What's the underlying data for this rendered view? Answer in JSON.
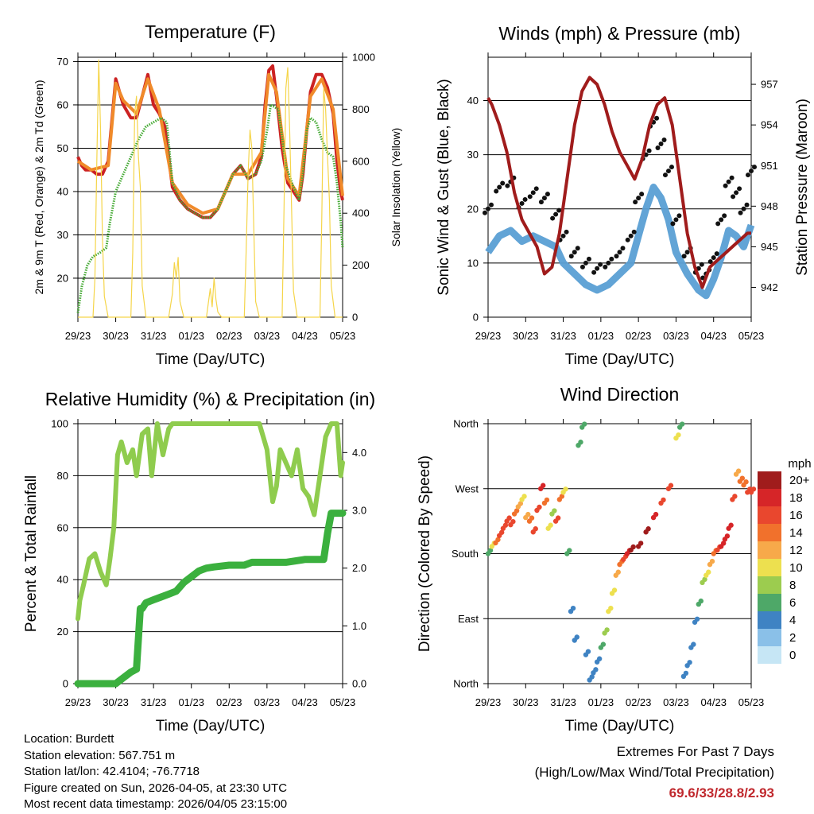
{
  "chart_data": [
    {
      "type": "line",
      "title": "Temperature (F)",
      "xlabel": "Time (Day/UTC)",
      "ylabel": "2m & 9m T (Red, Orange) & 2m Td (Green)",
      "y2label": "Solar Insolation (Yellow)",
      "xticks": [
        "29/23",
        "30/23",
        "31/23",
        "01/23",
        "02/23",
        "03/23",
        "04/23",
        "05/23"
      ],
      "ylim": [
        11,
        71
      ],
      "yticks": [
        "20",
        "30",
        "40",
        "50",
        "60",
        "70"
      ],
      "y2lim": [
        0,
        1000
      ],
      "y2ticks": [
        "0",
        "200",
        "400",
        "600",
        "800",
        "1000"
      ],
      "series": [
        {
          "name": "2m T",
          "color": "#cc2222",
          "x": [
            0,
            0.1,
            0.2,
            0.35,
            0.5,
            0.65,
            0.8,
            1.0,
            1.2,
            1.4,
            1.55,
            1.7,
            1.85,
            2.0,
            2.15,
            2.3,
            2.5,
            2.7,
            2.9,
            3.1,
            3.3,
            3.5,
            3.7,
            3.9,
            4.1,
            4.3,
            4.5,
            4.7,
            4.85,
            4.95,
            5.05,
            5.15,
            5.25,
            5.4,
            5.55,
            5.7,
            5.85,
            5.95,
            6.05,
            6.15,
            6.3,
            6.45,
            6.6,
            6.75,
            6.85,
            6.95,
            7.0
          ],
          "values": [
            48,
            46,
            45,
            45,
            44,
            44,
            47,
            66,
            60,
            57,
            57,
            62,
            67,
            60,
            58,
            55,
            41,
            38,
            36,
            35,
            34,
            34,
            36,
            40,
            44,
            46,
            43,
            44,
            48,
            60,
            68,
            69,
            62,
            50,
            42,
            40,
            38,
            44,
            54,
            63,
            67,
            67,
            64,
            58,
            47,
            40,
            38
          ]
        },
        {
          "name": "9m T",
          "color": "#f08a2a",
          "x": [
            0,
            0.35,
            0.8,
            1.0,
            1.2,
            1.55,
            1.85,
            2.15,
            2.5,
            2.9,
            3.3,
            3.7,
            4.1,
            4.5,
            4.85,
            5.05,
            5.25,
            5.55,
            5.85,
            6.15,
            6.45,
            6.75,
            7.0
          ],
          "values": [
            47,
            45,
            46,
            65,
            61,
            58,
            66,
            59,
            42,
            37,
            35,
            36,
            44,
            44,
            49,
            67,
            63,
            43,
            39,
            62,
            66,
            59,
            39
          ]
        },
        {
          "name": "2m Td",
          "color": "#44aa33",
          "x": [
            0,
            0.1,
            0.25,
            0.4,
            0.6,
            0.75,
            0.85,
            1.0,
            1.2,
            1.4,
            1.6,
            1.8,
            2.0,
            2.2,
            2.35,
            2.5,
            2.7,
            2.9,
            3.1,
            3.3,
            3.5,
            3.7,
            3.9,
            4.1,
            4.3,
            4.5,
            4.7,
            4.85,
            5.0,
            5.1,
            5.3,
            5.5,
            5.7,
            5.85,
            5.95,
            6.05,
            6.15,
            6.3,
            6.45,
            6.6,
            6.75,
            6.85,
            6.95,
            7.0
          ],
          "values": [
            12,
            18,
            23,
            25,
            26,
            27,
            33,
            40,
            44,
            48,
            52,
            55,
            56,
            57,
            56,
            42,
            38,
            36,
            35,
            34,
            34,
            36,
            40,
            44,
            46,
            43,
            44,
            47,
            54,
            60,
            59,
            46,
            41,
            38,
            44,
            54,
            57,
            56,
            52,
            49,
            48,
            42,
            33,
            27
          ]
        },
        {
          "name": "Solar Insolation",
          "color": "#f5d54a",
          "axis": "y2",
          "x": [
            0,
            0.4,
            0.45,
            0.5,
            0.55,
            0.6,
            0.65,
            0.7,
            0.8,
            1.4,
            1.45,
            1.5,
            1.55,
            1.6,
            1.65,
            1.7,
            1.8,
            2.4,
            2.5,
            2.55,
            2.6,
            2.65,
            2.7,
            2.8,
            3.4,
            3.5,
            3.55,
            3.6,
            3.65,
            3.7,
            3.8,
            4.4,
            4.45,
            4.5,
            4.55,
            4.6,
            4.65,
            4.7,
            4.8,
            5.4,
            5.45,
            5.5,
            5.55,
            5.6,
            5.65,
            5.7,
            5.8,
            6.4,
            6.45,
            6.5,
            6.55,
            6.6,
            6.65,
            6.7,
            6.8,
            7.0
          ],
          "values": [
            0,
            0,
            150,
            600,
            990,
            720,
            300,
            80,
            0,
            0,
            250,
            780,
            850,
            620,
            500,
            120,
            0,
            0,
            90,
            210,
            150,
            230,
            60,
            0,
            0,
            110,
            40,
            150,
            70,
            20,
            0,
            0,
            260,
            550,
            720,
            650,
            350,
            60,
            0,
            0,
            420,
            880,
            960,
            720,
            420,
            100,
            0,
            0,
            380,
            880,
            800,
            620,
            450,
            120,
            0,
            0
          ]
        }
      ]
    },
    {
      "type": "scatter",
      "title": "Winds (mph) & Pressure (mb)",
      "xlabel": "Time (Day/UTC)",
      "ylabel": "Sonic Wind & Gust (Blue, Black)",
      "y2label": "Station Pressure (Maroon)",
      "xticks": [
        "29/23",
        "30/23",
        "31/23",
        "01/23",
        "02/23",
        "03/23",
        "04/23",
        "05/23"
      ],
      "ylim": [
        0,
        48
      ],
      "yticks": [
        "0",
        "10",
        "20",
        "30",
        "40"
      ],
      "y2lim": [
        939.8,
        959.0
      ],
      "y2ticks": [
        "942",
        "945",
        "948",
        "951",
        "954",
        "957"
      ],
      "series": [
        {
          "name": "Sonic Wind",
          "color": "#5a9fd4",
          "x": [
            0,
            0.3,
            0.6,
            0.9,
            1.2,
            1.5,
            1.8,
            2.0,
            2.3,
            2.6,
            2.9,
            3.2,
            3.5,
            3.8,
            4.0,
            4.2,
            4.4,
            4.6,
            4.8,
            5.0,
            5.3,
            5.6,
            5.8,
            6.0,
            6.2,
            6.4,
            6.6,
            6.8,
            7.0
          ],
          "values": [
            12,
            15,
            16,
            14,
            15,
            14,
            13,
            10,
            8,
            6,
            5,
            6,
            8,
            10,
            15,
            20,
            24,
            22,
            18,
            12,
            8,
            5,
            4,
            7,
            11,
            16,
            15,
            13,
            17
          ]
        },
        {
          "name": "Gust",
          "color": "#111111",
          "x": [
            0,
            0.3,
            0.6,
            0.9,
            1.2,
            1.5,
            1.8,
            2.0,
            2.3,
            2.6,
            2.9,
            3.2,
            3.5,
            3.8,
            4.0,
            4.2,
            4.4,
            4.6,
            4.8,
            5.0,
            5.3,
            5.6,
            5.8,
            6.0,
            6.2,
            6.4,
            6.6,
            6.8,
            7.0
          ],
          "values": [
            20,
            24,
            25,
            21,
            23,
            22,
            19,
            15,
            12,
            10,
            9,
            10,
            12,
            15,
            22,
            30,
            36,
            32,
            27,
            18,
            12,
            9,
            8,
            11,
            18,
            25,
            23,
            20,
            27
          ]
        },
        {
          "name": "Station Pressure",
          "color": "#a01c1c",
          "axis": "y2",
          "x": [
            0,
            0.1,
            0.3,
            0.5,
            0.7,
            0.9,
            1.1,
            1.3,
            1.5,
            1.7,
            1.9,
            2.1,
            2.3,
            2.5,
            2.7,
            2.9,
            3.1,
            3.3,
            3.5,
            3.7,
            3.9,
            4.1,
            4.3,
            4.5,
            4.7,
            4.9,
            5.1,
            5.3,
            5.5,
            5.7,
            5.9,
            6.1,
            6.3,
            6.5,
            6.7,
            6.9,
            7.0
          ],
          "values": [
            956,
            955.5,
            954,
            952,
            949,
            947,
            946,
            945,
            943,
            943.5,
            946,
            950,
            954,
            956.5,
            957.5,
            957,
            955.5,
            953.5,
            952,
            951,
            950,
            951.5,
            954,
            955.5,
            956,
            954,
            950,
            946,
            943.5,
            942,
            943.5,
            944,
            944.5,
            945,
            945.5,
            946,
            946
          ]
        }
      ]
    },
    {
      "type": "line",
      "title": "Relative Humidity (%) & Precipitation (in)",
      "xlabel": "Time (Day/UTC)",
      "ylabel": "Percent & Total Rainfall",
      "xticks": [
        "29/23",
        "30/23",
        "31/23",
        "01/23",
        "02/23",
        "03/23",
        "04/23",
        "05/23"
      ],
      "ylim": [
        0,
        100
      ],
      "yticks": [
        "0",
        "20",
        "40",
        "60",
        "80",
        "100"
      ],
      "y2lim": [
        0,
        4.5
      ],
      "y2ticks": [
        "0.0",
        "1.0",
        "2.0",
        "3.0",
        "4.0"
      ],
      "series": [
        {
          "name": "Relative Humidity",
          "color": "#8fcc4e",
          "x": [
            0,
            0.05,
            0.15,
            0.3,
            0.45,
            0.6,
            0.75,
            0.85,
            0.95,
            1.05,
            1.15,
            1.3,
            1.45,
            1.55,
            1.7,
            1.85,
            1.95,
            2.1,
            2.25,
            2.4,
            2.5,
            2.7,
            3.0,
            3.5,
            4.0,
            4.5,
            4.8,
            5.0,
            5.15,
            5.25,
            5.35,
            5.5,
            5.65,
            5.8,
            5.95,
            6.1,
            6.25,
            6.4,
            6.55,
            6.7,
            6.85,
            6.95,
            7.0
          ],
          "values": [
            25,
            32,
            38,
            48,
            50,
            43,
            38,
            48,
            60,
            88,
            93,
            85,
            90,
            80,
            96,
            98,
            80,
            100,
            88,
            98,
            100,
            100,
            100,
            100,
            100,
            100,
            100,
            90,
            70,
            76,
            90,
            85,
            80,
            90,
            75,
            72,
            65,
            80,
            95,
            100,
            100,
            80,
            85
          ]
        },
        {
          "name": "Total Precipitation",
          "color": "#3bb03e",
          "axis": "y2",
          "x": [
            0,
            0.5,
            1.0,
            1.2,
            1.4,
            1.55,
            1.65,
            1.7,
            1.8,
            2.0,
            2.2,
            2.4,
            2.6,
            2.8,
            3.0,
            3.2,
            3.4,
            3.6,
            4.0,
            4.4,
            4.6,
            5.0,
            5.5,
            6.0,
            6.5,
            6.6,
            6.7,
            7.0
          ],
          "values": [
            0,
            0,
            0,
            0.1,
            0.2,
            0.25,
            1.3,
            1.3,
            1.4,
            1.45,
            1.5,
            1.55,
            1.6,
            1.75,
            1.85,
            1.95,
            2.0,
            2.02,
            2.05,
            2.05,
            2.1,
            2.1,
            2.1,
            2.15,
            2.15,
            2.6,
            2.95,
            2.95
          ]
        }
      ]
    },
    {
      "type": "scatter",
      "title": "Wind Direction",
      "xlabel": "Time (Day/UTC)",
      "ylabel": "Direction (Colored By Speed)",
      "xticks": [
        "29/23",
        "30/23",
        "31/23",
        "01/23",
        "02/23",
        "03/23",
        "04/23",
        "05/23"
      ],
      "ylim": [
        0,
        360
      ],
      "yticks": [
        "North",
        "East",
        "South",
        "West",
        "North"
      ],
      "colorbar": {
        "title": "mph",
        "labels": [
          "20+",
          "18",
          "16",
          "14",
          "12",
          "10",
          "8",
          "6",
          "4",
          "2",
          "0"
        ],
        "colors": [
          "#a01c1c",
          "#d62528",
          "#e9472e",
          "#f1712c",
          "#f7a94a",
          "#ede04f",
          "#9ccc4f",
          "#4ea868",
          "#3f83c3",
          "#8ac0e8",
          "#c6e6f5"
        ]
      },
      "series": [
        {
          "name": "Direction",
          "x": [
            0,
            0.1,
            0.2,
            0.3,
            0.4,
            0.5,
            0.6,
            0.7,
            0.8,
            0.9,
            1.0,
            1.1,
            1.2,
            1.3,
            1.4,
            1.5,
            1.6,
            1.7,
            1.8,
            1.9,
            2.0,
            2.1,
            2.2,
            2.3,
            2.4,
            2.5,
            2.6,
            2.7,
            2.8,
            2.9,
            3.0,
            3.1,
            3.2,
            3.3,
            3.4,
            3.5,
            3.6,
            3.7,
            3.8,
            4.0,
            4.2,
            4.4,
            4.6,
            4.8,
            5.0,
            5.1,
            5.2,
            5.3,
            5.4,
            5.5,
            5.6,
            5.7,
            5.8,
            5.9,
            6.0,
            6.1,
            6.2,
            6.3,
            6.4,
            6.5,
            6.6,
            6.7,
            6.8,
            6.9,
            7.0
          ],
          "values": [
            180,
            190,
            195,
            205,
            215,
            225,
            220,
            235,
            245,
            255,
            230,
            225,
            210,
            240,
            270,
            250,
            215,
            235,
            225,
            255,
            265,
            180,
            100,
            60,
            330,
            355,
            40,
            5,
            15,
            30,
            50,
            70,
            100,
            125,
            150,
            165,
            172,
            180,
            185,
            190,
            210,
            230,
            250,
            270,
            340,
            355,
            10,
            25,
            50,
            85,
            110,
            140,
            150,
            165,
            180,
            185,
            190,
            200,
            215,
            255,
            290,
            280,
            275,
            265,
            265
          ],
          "speeds": [
            6,
            10,
            14,
            16,
            16,
            16,
            16,
            14,
            12,
            10,
            12,
            14,
            16,
            16,
            18,
            14,
            10,
            8,
            16,
            14,
            10,
            6,
            4,
            4,
            6,
            6,
            4,
            4,
            4,
            4,
            6,
            8,
            10,
            10,
            12,
            14,
            16,
            18,
            20,
            20,
            20,
            18,
            16,
            16,
            10,
            6,
            4,
            4,
            4,
            4,
            6,
            8,
            10,
            12,
            14,
            16,
            18,
            18,
            18,
            16,
            12,
            14,
            14,
            16,
            16
          ]
        }
      ]
    }
  ],
  "info": {
    "location": "Location: Burdett",
    "elevation": "Station elevation: 567.751 m",
    "latlon": "Station lat/lon: 42.4104; -76.7718",
    "created": "Figure created on Sun, 2026-04-05, at 23:30 UTC",
    "recent": "Most recent data timestamp: 2026/04/05 23:15:00"
  },
  "extremes": {
    "title": "Extremes For Past 7 Days",
    "subtitle": "(High/Low/Max Wind/Total Precipitation)",
    "values": "69.6/33/28.8/2.93"
  }
}
